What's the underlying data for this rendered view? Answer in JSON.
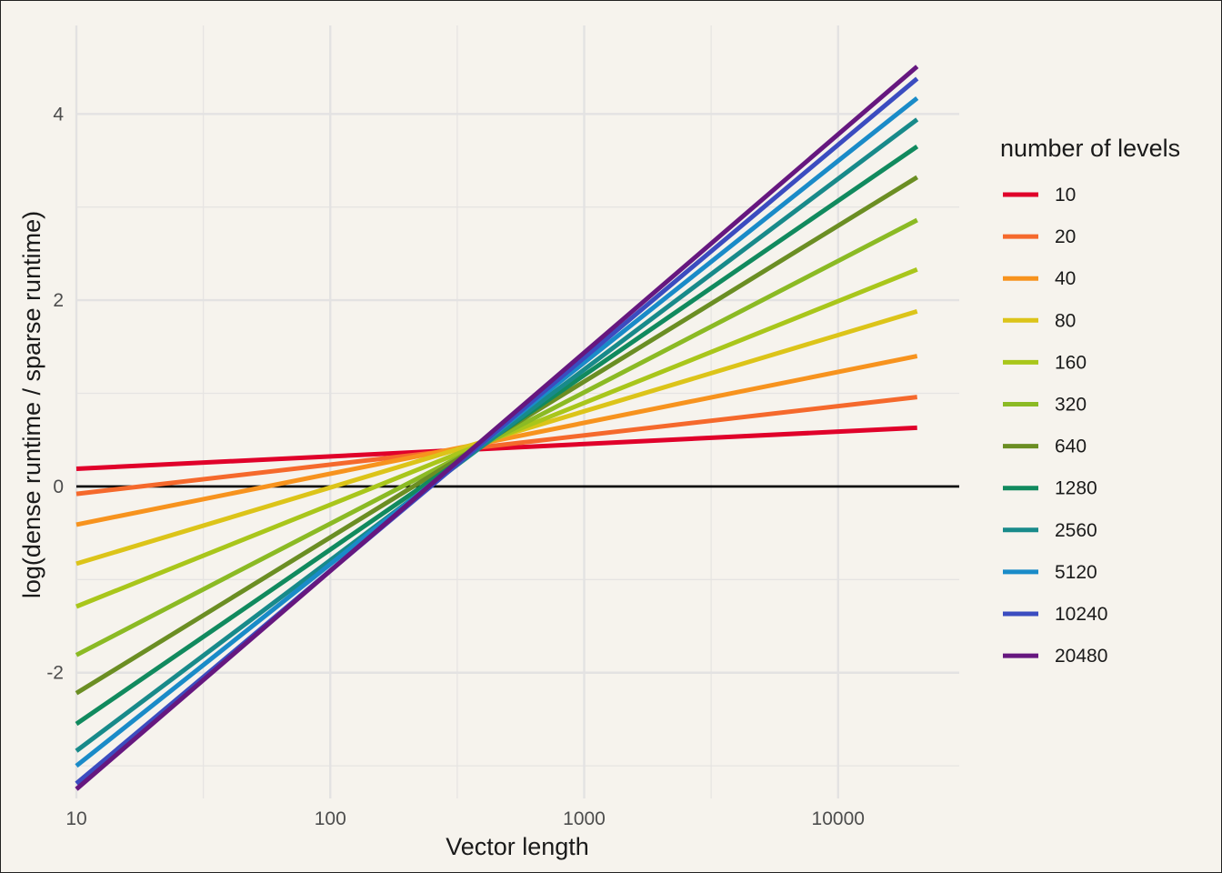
{
  "chart_data": {
    "type": "line",
    "title": "",
    "xlabel": "Vector length",
    "ylabel": "log(dense runtime / sparse runtime)",
    "x_scale": "log10",
    "xlim": [
      10,
      30000
    ],
    "ylim": [
      -3.35,
      4.95
    ],
    "x_ticks": [
      10,
      100,
      1000,
      10000
    ],
    "x_tick_labels": [
      "10",
      "100",
      "1000",
      "10000"
    ],
    "y_ticks": [
      -2,
      0,
      2,
      4
    ],
    "y_tick_labels": [
      "-2",
      "0",
      "2",
      "4"
    ],
    "grid": true,
    "reference_line_y": 0,
    "legend": {
      "title": "number of levels",
      "position": "right"
    },
    "x": [
      10,
      20480
    ],
    "series": [
      {
        "name": "10",
        "color": "#e0002a",
        "values": [
          0.19,
          0.63
        ]
      },
      {
        "name": "20",
        "color": "#f5692c",
        "values": [
          -0.08,
          0.96
        ]
      },
      {
        "name": "40",
        "color": "#f7931e",
        "values": [
          -0.41,
          1.4
        ]
      },
      {
        "name": "80",
        "color": "#dcc419",
        "values": [
          -0.83,
          1.88
        ]
      },
      {
        "name": "160",
        "color": "#a9c61b",
        "values": [
          -1.29,
          2.33
        ]
      },
      {
        "name": "320",
        "color": "#8bba24",
        "values": [
          -1.81,
          2.86
        ]
      },
      {
        "name": "640",
        "color": "#6b8e23",
        "values": [
          -2.22,
          3.32
        ]
      },
      {
        "name": "1280",
        "color": "#118a5e",
        "values": [
          -2.55,
          3.65
        ]
      },
      {
        "name": "2560",
        "color": "#188a8a",
        "values": [
          -2.84,
          3.94
        ]
      },
      {
        "name": "5120",
        "color": "#1a8bc8",
        "values": [
          -3.0,
          4.17
        ]
      },
      {
        "name": "10240",
        "color": "#3b4cc0",
        "values": [
          -3.19,
          4.38
        ]
      },
      {
        "name": "20480",
        "color": "#66177f",
        "values": [
          -3.25,
          4.51
        ]
      }
    ]
  }
}
